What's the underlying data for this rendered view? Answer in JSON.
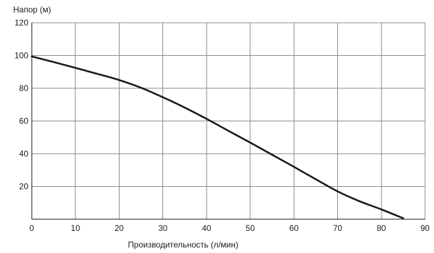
{
  "chart_data": {
    "type": "line",
    "xlabel": "Производительность (л/мин)",
    "ylabel": "Напор (м)",
    "xlim": [
      0,
      90
    ],
    "ylim": [
      0,
      120
    ],
    "xticks": [
      0,
      10,
      20,
      30,
      40,
      50,
      60,
      70,
      80,
      90
    ],
    "yticks": [
      20,
      40,
      60,
      80,
      100,
      120
    ],
    "grid": true,
    "colors": {
      "line": "#1a1a1a",
      "grid": "#8a8a8a",
      "axis": "#111111"
    },
    "series": [
      {
        "x": [
          0,
          5,
          10,
          15,
          20,
          25,
          30,
          35,
          40,
          45,
          50,
          55,
          60,
          65,
          70,
          75,
          80,
          85
        ],
        "y": [
          99.4,
          96,
          92.4,
          88.8,
          85,
          80.3,
          74.5,
          68.2,
          61.3,
          54,
          46.8,
          39.4,
          32,
          24.4,
          17,
          11,
          6,
          0.6
        ]
      }
    ]
  }
}
